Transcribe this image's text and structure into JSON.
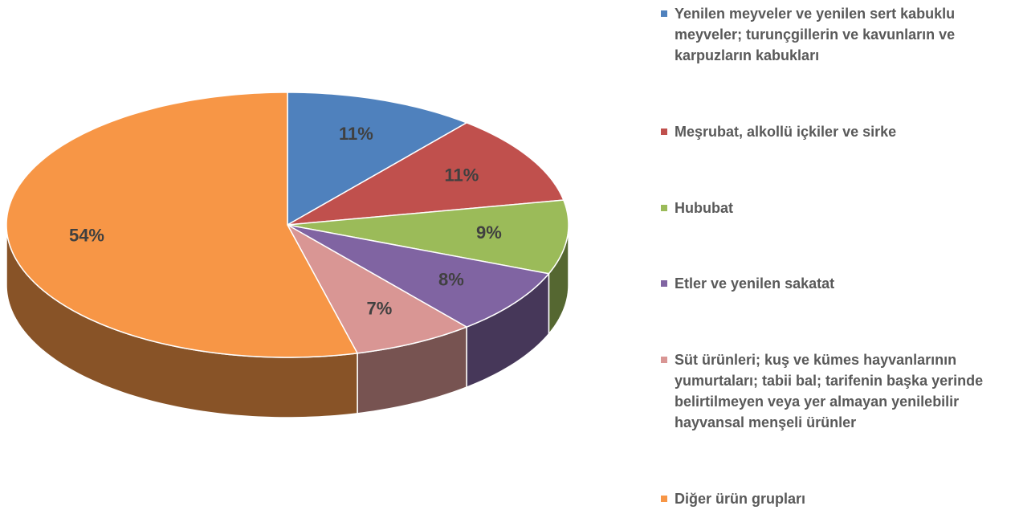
{
  "chart_data": {
    "type": "pie",
    "categories": [
      "Yenilen meyveler ve yenilen sert kabuklu meyveler; turunçgillerin ve kavunların ve karpuzların kabukları",
      "Meşrubat, alkollü içkiler ve sirke",
      "Hububat",
      "Etler ve yenilen sakatat",
      "Süt ürünleri; kuş ve kümes hayvanlarının yumurtaları; tabii bal; tarifenin başka yerinde belirtilmeyen veya yer almayan yenilebilir hayvansal menşeli ürünler",
      "Diğer ürün grupları"
    ],
    "values": [
      11,
      11,
      9,
      8,
      7,
      54
    ],
    "value_labels": [
      "11%",
      "11%",
      "9%",
      "8%",
      "7%",
      "54%"
    ],
    "colors": [
      "#4f81bd",
      "#c0504d",
      "#9bbb59",
      "#8064a2",
      "#d99694",
      "#f79646"
    ],
    "legend": "right"
  }
}
